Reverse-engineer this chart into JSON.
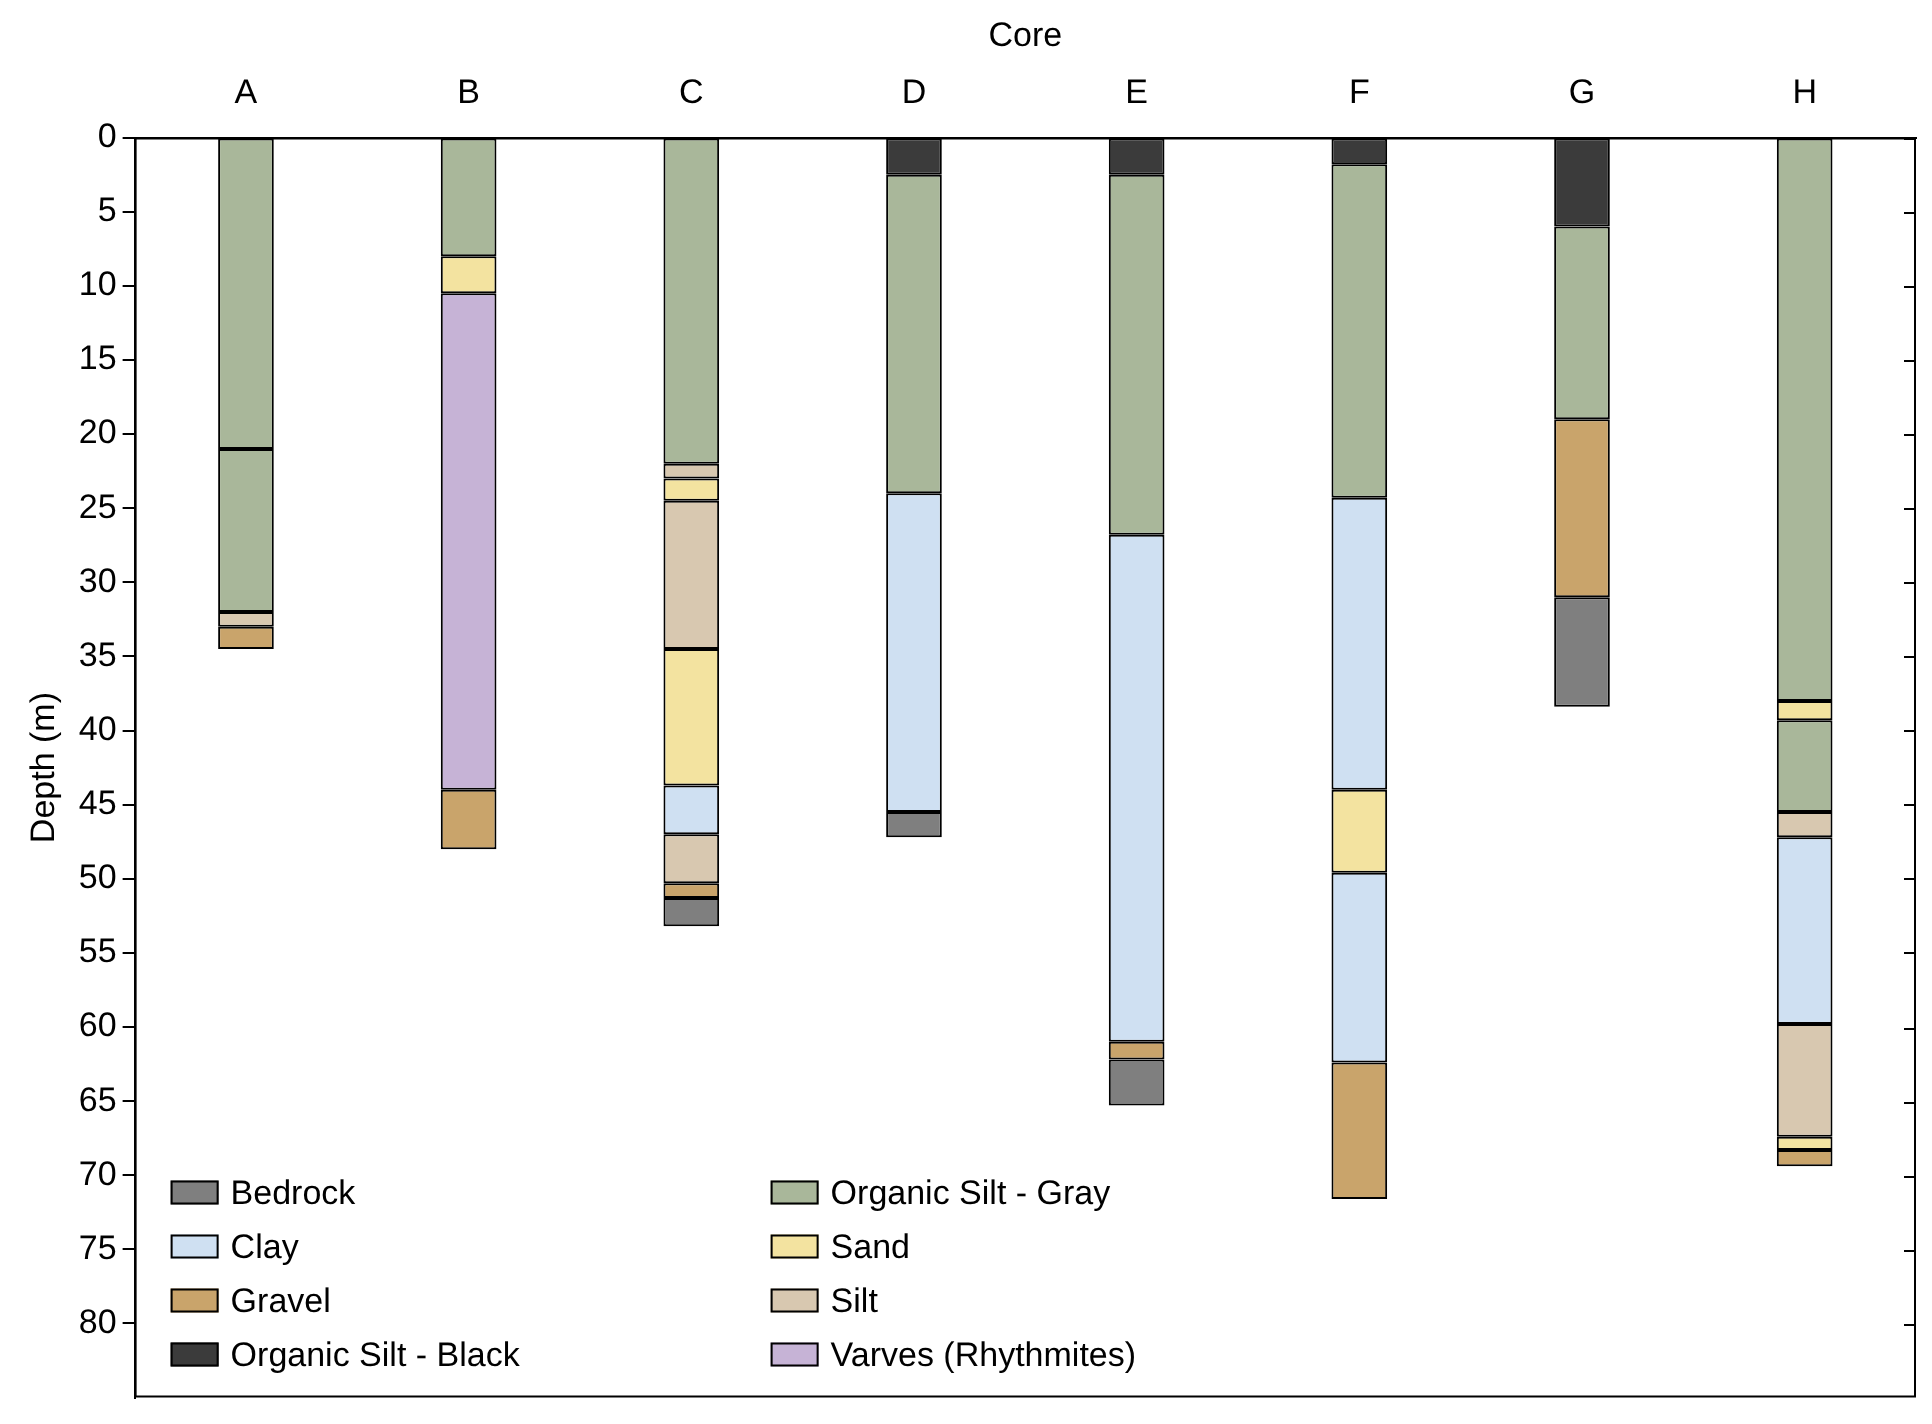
{
  "chart_data": {
    "type": "bar",
    "xlabel": "Core",
    "ylabel": "Depth (m)",
    "categories": [
      "A",
      "B",
      "C",
      "D",
      "E",
      "F",
      "G",
      "H"
    ],
    "ylim": [
      85,
      0
    ],
    "yticks": [
      0,
      5,
      10,
      15,
      20,
      25,
      30,
      35,
      40,
      45,
      50,
      55,
      60,
      65,
      70,
      75,
      80
    ],
    "grid": false,
    "legend": "bottom left",
    "series": [
      {
        "name": "Bedrock",
        "color": "#7f7f7f",
        "base": [
          null,
          null,
          51.3,
          45.5,
          62.2,
          null,
          31,
          null
        ],
        "values": [
          null,
          null,
          1.9,
          1.7,
          3.1,
          null,
          7.4,
          null
        ]
      },
      {
        "name": "Clay",
        "color": "#cfe0f2",
        "base": [
          null,
          null,
          43.7,
          24,
          26.8,
          24.3,
          null,
          47.2
        ],
        "values": [
          null,
          null,
          3.3,
          21.5,
          34.2,
          19.7,
          null,
          12.6
        ]
      },
      {
        "color": "#cfe0f2",
        "base": [
          null,
          null,
          null,
          null,
          null,
          49.6,
          null,
          null
        ],
        "values": [
          null,
          null,
          null,
          null,
          null,
          12.8,
          null,
          null
        ]
      },
      {
        "name": "Gravel",
        "color": "#c9a46b",
        "base": [
          33,
          44,
          50.3,
          null,
          61,
          62.4,
          19,
          68.3
        ],
        "values": [
          1.5,
          4,
          1,
          null,
          1.2,
          9.2,
          12,
          1.1
        ]
      },
      {
        "name": "Organic Silt - Black",
        "color": "#3b3b3b",
        "base": [
          null,
          null,
          null,
          0,
          0,
          0,
          0,
          null
        ],
        "values": [
          null,
          null,
          null,
          2.5,
          2.5,
          1.8,
          6,
          null
        ]
      },
      {
        "name": "Organic Silt - Gray",
        "color": "#a9b79a",
        "base": [
          0,
          0,
          0,
          2.5,
          2.5,
          1.8,
          6,
          0
        ],
        "values": [
          21,
          8,
          22,
          21.5,
          24.3,
          22.5,
          13,
          38
        ]
      },
      {
        "color": "#a9b79a",
        "base": [
          21,
          null,
          null,
          null,
          null,
          null,
          null,
          39.3
        ],
        "values": [
          11,
          null,
          null,
          null,
          null,
          null,
          null,
          6.2
        ]
      },
      {
        "name": "Sand",
        "color": "#f3e3a0",
        "base": [
          null,
          8,
          23,
          null,
          null,
          44,
          null,
          38
        ],
        "values": [
          null,
          2.5,
          1.5,
          null,
          null,
          5.6,
          null,
          1.3
        ]
      },
      {
        "color": "#f3e3a0",
        "base": [
          null,
          null,
          34.5,
          null,
          null,
          null,
          null,
          67.4
        ],
        "values": [
          null,
          null,
          9.2,
          null,
          null,
          null,
          null,
          0.9
        ]
      },
      {
        "name": "Silt",
        "color": "#d8c8b0",
        "base": [
          32,
          null,
          22,
          null,
          null,
          null,
          null,
          45.5
        ],
        "values": [
          1,
          null,
          1,
          null,
          null,
          null,
          null,
          1.7
        ]
      },
      {
        "color": "#d8c8b0",
        "base": [
          null,
          null,
          24.5,
          null,
          null,
          null,
          null,
          59.8
        ],
        "values": [
          null,
          null,
          10,
          null,
          null,
          null,
          null,
          7.6
        ]
      },
      {
        "color": "#d8c8b0",
        "base": [
          null,
          null,
          47,
          null,
          null,
          null,
          null,
          null
        ],
        "values": [
          null,
          null,
          3.3,
          null,
          null,
          null,
          null,
          null
        ]
      },
      {
        "name": "Varves (Rhythmites)",
        "color": "#c6b3d6",
        "base": [
          null,
          10.5,
          null,
          null,
          null,
          null,
          null,
          null
        ],
        "values": [
          null,
          33.5,
          null,
          null,
          null,
          null,
          null,
          null
        ]
      }
    ]
  }
}
